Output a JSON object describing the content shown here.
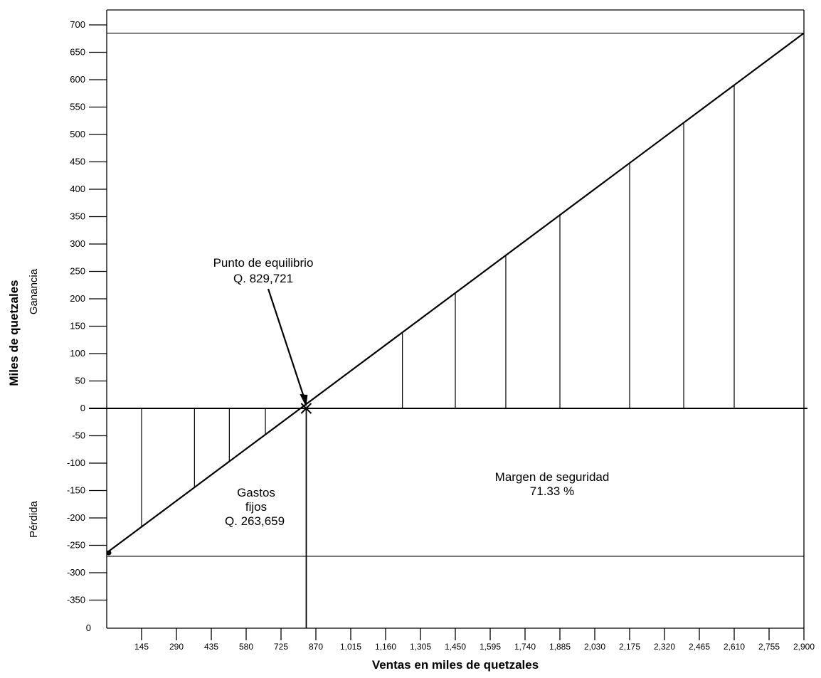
{
  "chart_data": {
    "type": "line",
    "xlabel": "Ventas en miles de quetzales",
    "ylabel": "Miles de quetzales",
    "ylabel_upper": "Ganancia",
    "ylabel_lower": "Pérdida",
    "xlim": [
      0,
      2900
    ],
    "ylim": [
      -400,
      700
    ],
    "x_ticks": [
      145,
      290,
      435,
      580,
      725,
      870,
      1015,
      1160,
      1305,
      1450,
      1595,
      1740,
      1885,
      2030,
      2175,
      2320,
      2465,
      2610,
      2755,
      2900
    ],
    "x_tick_labels": [
      "145",
      "290",
      "435",
      "580",
      "725",
      "870",
      "1,015",
      "1,160",
      "1,305",
      "1,450",
      "1,595",
      "1,740",
      "1,885",
      "2,030",
      "2,175",
      "2,320",
      "2,465",
      "2,610",
      "2,755",
      "2,900"
    ],
    "x_origin_label": "0",
    "y_ticks": [
      700,
      650,
      600,
      550,
      500,
      450,
      400,
      350,
      300,
      250,
      200,
      150,
      100,
      50,
      0,
      -50,
      -100,
      -150,
      -200,
      -250,
      -300,
      -350
    ],
    "y_tick_labels": [
      "700",
      "650",
      "600",
      "550",
      "500",
      "450",
      "400",
      "350",
      "300",
      "250",
      "200",
      "150",
      "100",
      "50",
      "0",
      "-50",
      "-100",
      "-150",
      "-200",
      "-250",
      "-300",
      "-350"
    ],
    "series": [
      {
        "values": [
          [
            0,
            -263.659
          ],
          [
            2900,
            685
          ]
        ]
      }
    ],
    "reference_lines": {
      "zero_line": 0,
      "fixed_cost_line": -270,
      "max_profit_line": 685,
      "break_even_x": 830
    },
    "profit_loss_bars_x": [
      145,
      365,
      510,
      660,
      1230,
      1450,
      1660,
      1885,
      2175,
      2400,
      2610
    ],
    "break_even_point": {
      "x": 829.721,
      "y": 0
    },
    "annotations": {
      "break_even_title": "Punto de equilibrio",
      "break_even_value": "Q. 829,721",
      "fixed_costs_line1": "Gastos",
      "fixed_costs_line2": "fijos",
      "fixed_costs_value": "Q. 263,659",
      "safety_margin_title": "Margen de seguridad",
      "safety_margin_value": "71.33 %"
    },
    "grid": false,
    "legend": "none"
  }
}
